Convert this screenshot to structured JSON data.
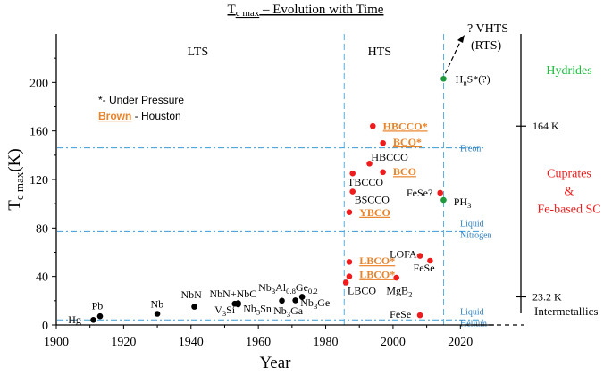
{
  "chart_data": {
    "type": "scatter",
    "title": "Tc max – Evolution with Time",
    "title_main": "T",
    "title_sub": "c max",
    "title_rest": " – Evolution with Time",
    "xlabel": "Year",
    "ylabel_main": "T",
    "ylabel_sub": "c max",
    "ylabel_rest": "(K)",
    "xlim": [
      1900,
      2030
    ],
    "ylim": [
      0,
      240
    ],
    "xticks": [
      1900,
      1920,
      1940,
      1960,
      1980,
      2000,
      2020
    ],
    "yticks": [
      0,
      40,
      80,
      120,
      160,
      200
    ],
    "region_labels": [
      {
        "text": "LTS",
        "x": 1942,
        "y": 226
      },
      {
        "text": "HTS",
        "x": 1996,
        "y": 226
      }
    ],
    "region_boundaries": [
      1985.5,
      2015
    ],
    "ref_lines": [
      {
        "y": 146,
        "label": [
          "Freon"
        ]
      },
      {
        "y": 77,
        "label": [
          "Liquid",
          "Nitrogen"
        ]
      },
      {
        "y": 4.2,
        "label": [
          "Liquid",
          "Helium"
        ]
      }
    ],
    "legend_note": "*- Under Pressure",
    "legend_brown_word": "Brown",
    "legend_brown_rest": " - Houston",
    "series": [
      {
        "name": "Intermetallics",
        "color": "#000000",
        "points": [
          {
            "x": 1911,
            "y": 4.2,
            "label": "Hg",
            "lx": 1903.5,
            "ly": 1.5
          },
          {
            "x": 1913,
            "y": 7.2,
            "label": "Pb",
            "lx": 1910.5,
            "ly": 13
          },
          {
            "x": 1930,
            "y": 9.2,
            "label": "Nb",
            "lx": 1928,
            "ly": 14.5
          },
          {
            "x": 1941,
            "y": 15,
            "label": "NbN",
            "lx": 1937,
            "ly": 22
          },
          {
            "x": 1954,
            "y": 17,
            "label": "NbN+NbC",
            "lx": 1945.5,
            "ly": 23
          },
          {
            "x": 1953,
            "y": 17.5,
            "label": "V3Si",
            "lx": 1947,
            "ly": 9.5,
            "main": "V",
            "sub": "3",
            "rest": "Si"
          },
          {
            "x": 1954,
            "y": 18,
            "label": "Nb3Sn",
            "lx": 1955.5,
            "ly": 10.5,
            "main": "Nb",
            "sub": "3",
            "rest": "Sn"
          },
          {
            "x": 1967,
            "y": 20,
            "label": "Nb3Al0.8Ge0.2",
            "lx": 1960,
            "ly": 28,
            "main": "Nb",
            "sub": "3",
            "rest": "Al",
            "sub2": "0.8",
            "rest2": "Ge",
            "sub3": "0.2"
          },
          {
            "x": 1971,
            "y": 20.3,
            "label": "Nb3Ga",
            "lx": 1964.5,
            "ly": 9,
            "main": "Nb",
            "sub": "3",
            "rest": "Ga"
          },
          {
            "x": 1973,
            "y": 23.2,
            "label": "Nb3Ge",
            "lx": 1972.5,
            "ly": 15.5,
            "main": "Nb",
            "sub": "3",
            "rest": "Ge"
          }
        ]
      },
      {
        "name": "Cuprates & Fe-based SC",
        "color": "#ee1c1c",
        "points": [
          {
            "x": 1986,
            "y": 35,
            "label": "LBCO",
            "lx": 1986.5,
            "ly": 25.5
          },
          {
            "x": 1987,
            "y": 40,
            "label": "LBCO*",
            "lx": 1990,
            "ly": 38.5,
            "brown": true
          },
          {
            "x": 1987,
            "y": 52,
            "label": "LBCO*",
            "lx": 1990,
            "ly": 50,
            "brown": true
          },
          {
            "x": 1987,
            "y": 93,
            "label": "YBCO",
            "lx": 1990,
            "ly": 90,
            "brown": true
          },
          {
            "x": 1988,
            "y": 110,
            "label": "BSCCO",
            "lx": 1988.5,
            "ly": 100.5
          },
          {
            "x": 1988,
            "y": 125,
            "label": "TBCCO",
            "lx": 1986.5,
            "ly": 115
          },
          {
            "x": 1993,
            "y": 133,
            "label": "HBCCO",
            "lx": 1993.5,
            "ly": 135.5
          },
          {
            "x": 1997,
            "y": 126,
            "label": "BCO",
            "lx": 2000,
            "ly": 123.5,
            "brown": true
          },
          {
            "x": 1997,
            "y": 150,
            "label": "BCO*",
            "lx": 2000,
            "ly": 148,
            "brown": true
          },
          {
            "x": 1994,
            "y": 164,
            "label": "HBCCO*",
            "lx": 1997,
            "ly": 161,
            "brown": true
          },
          {
            "x": 2001,
            "y": 39,
            "label": "MgB2",
            "lx": 1998,
            "ly": 25.5,
            "main": "MgB",
            "sub": "2",
            "rest": ""
          },
          {
            "x": 2008,
            "y": 57,
            "label": "LOFA",
            "lx": 1999,
            "ly": 55.5
          },
          {
            "x": 2011,
            "y": 53,
            "label": "FeSe",
            "lx": 2006,
            "ly": 44
          },
          {
            "x": 2008,
            "y": 8,
            "label": "FeSe",
            "lx": 1999,
            "ly": 6
          },
          {
            "x": 2014,
            "y": 109,
            "label": "FeSe?",
            "lx": 2004,
            "ly": 106
          }
        ]
      },
      {
        "name": "Hydrides",
        "color": "#1e9a3c",
        "points": [
          {
            "x": 2015,
            "y": 203,
            "label": "HnS*(?)",
            "lx": 2018.5,
            "ly": 200,
            "main": "H",
            "sub": "n",
            "rest": "S*(?)"
          },
          {
            "x": 2015,
            "y": 103,
            "label": "PH3",
            "lx": 2018,
            "ly": 98.5,
            "main": "PH",
            "sub": "3",
            "rest": ""
          }
        ]
      }
    ],
    "right_axis": {
      "ticks": [
        {
          "y": 164,
          "label": "164 K"
        },
        {
          "y": 23.2,
          "label": "23.2 K"
        }
      ],
      "groups": [
        {
          "lines": [
            "Hydrides"
          ],
          "color": "#1fba3f",
          "y": 207
        },
        {
          "lines": [
            "Cuprates",
            "&",
            "Fe-based SC"
          ],
          "color": "#ee1c1c",
          "y": 122
        },
        {
          "lines": [
            "Intermetallics"
          ],
          "color": "#000000",
          "y": 8
        }
      ]
    },
    "vhts_lines": [
      "? VHTS",
      "(RTS)"
    ]
  }
}
